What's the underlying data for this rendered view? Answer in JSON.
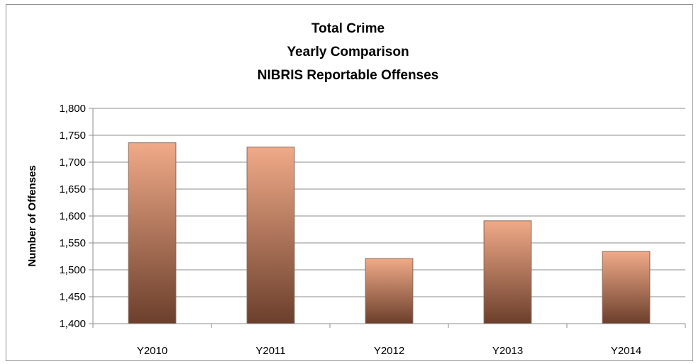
{
  "chart_data": {
    "type": "bar",
    "title": [
      "Total Crime",
      "Yearly Comparison",
      "NIBRIS Reportable Offenses"
    ],
    "xlabel": "",
    "ylabel": "Number of Offenses",
    "categories": [
      "Y2010",
      "Y2011",
      "Y2012",
      "Y2013",
      "Y2014"
    ],
    "values": [
      1736,
      1728,
      1521,
      1591,
      1534
    ],
    "ylim": [
      1400,
      1800
    ],
    "yticks": [
      1400,
      1450,
      1500,
      1550,
      1600,
      1650,
      1700,
      1750,
      1800
    ],
    "ytick_labels": [
      "1,400",
      "1,450",
      "1,500",
      "1,550",
      "1,600",
      "1,650",
      "1,700",
      "1,750",
      "1,800"
    ],
    "grid": true,
    "legend": "none",
    "colors": {
      "bar_top": "#f0aa88",
      "bar_bottom": "#6b3f2c",
      "gridline": "#8c8c8c"
    }
  }
}
